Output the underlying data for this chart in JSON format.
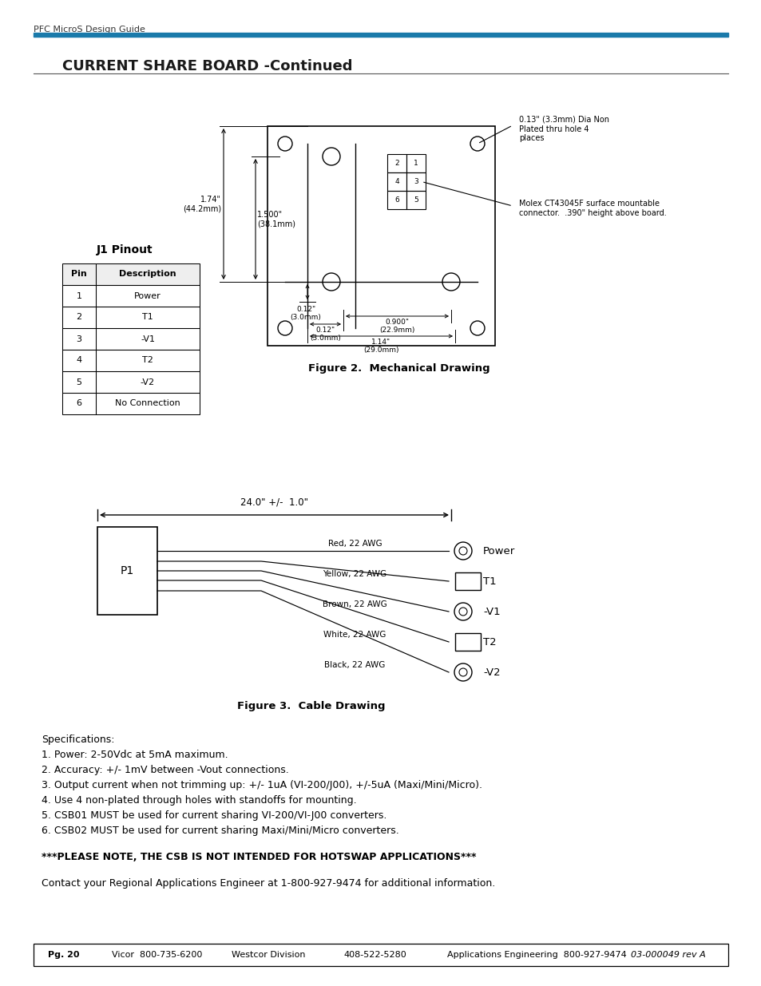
{
  "bg_color": "#ffffff",
  "header_text": "PFC MicroS Design Guide",
  "header_line_color": "#1a7aaa",
  "title": "CURRENT SHARE BOARD -Continued",
  "fig2_caption": "Figure 2.  Mechanical Drawing",
  "fig3_caption": "Figure 3.  Cable Drawing",
  "j1_title": "J1 Pinout",
  "j1_table": [
    [
      "Pin",
      "Description"
    ],
    [
      "1",
      "Power"
    ],
    [
      "2",
      "T1"
    ],
    [
      "3",
      "-V1"
    ],
    [
      "4",
      "T2"
    ],
    [
      "5",
      "-V2"
    ],
    [
      "6",
      "No Connection"
    ]
  ],
  "spec_lines": [
    "Specifications:",
    "1. Power: 2-50Vdc at 5mA maximum.",
    "2. Accuracy: +/- 1mV between -Vout connections.",
    "3. Output current when not trimming up: +/- 1uA (VI-200/J00), +/-5uA (Maxi/Mini/Micro).",
    "4. Use 4 non-plated through holes with standoffs for mounting.",
    "5. CSB01 MUST be used for current sharing VI-200/VI-J00 converters.",
    "6. CSB02 MUST be used for current sharing Maxi/Mini/Micro converters."
  ],
  "bold_note": "***PLEASE NOTE, THE CSB IS NOT INTENDED FOR HOTSWAP APPLICATIONS***",
  "contact_text": "Contact your Regional Applications Engineer at 1-800-927-9474 for additional information.",
  "footer_text_parts": [
    "Pg. 20",
    "Vicor  800-735-6200",
    "Westcor Division",
    "408-522-5280",
    "Applications Engineering  800-927-9474",
    "03-000049 rev A"
  ],
  "footer_x_positions": [
    60,
    140,
    290,
    430,
    560,
    790
  ]
}
